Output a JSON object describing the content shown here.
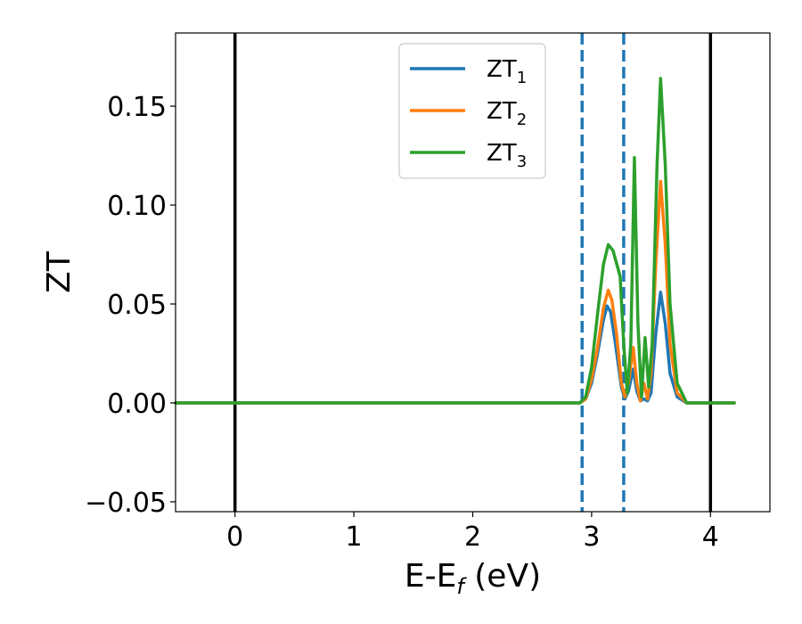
{
  "chart_data": {
    "type": "line",
    "xlabel": "E-E",
    "xlabel_sub": "f",
    "xlabel_unit": " (eV)",
    "ylabel": "ZT",
    "xlim": [
      -0.5,
      4.5
    ],
    "ylim": [
      -0.055,
      0.187
    ],
    "x_ticks": [
      {
        "value": 0,
        "label": "0"
      },
      {
        "value": 1,
        "label": "1"
      },
      {
        "value": 2,
        "label": "2"
      },
      {
        "value": 3,
        "label": "3"
      },
      {
        "value": 4,
        "label": "4"
      }
    ],
    "y_ticks": [
      {
        "value": -0.05,
        "label": "−0.05"
      },
      {
        "value": 0.0,
        "label": "0.00"
      },
      {
        "value": 0.05,
        "label": "0.05"
      },
      {
        "value": 0.1,
        "label": "0.10"
      },
      {
        "value": 0.15,
        "label": "0.15"
      }
    ],
    "grid": false,
    "legend_position": "top-center",
    "vertical_lines": [
      {
        "x": 0.0,
        "style": "solid",
        "color": "#000000"
      },
      {
        "x": 4.0,
        "style": "solid",
        "color": "#000000"
      },
      {
        "x": 2.92,
        "style": "dashed",
        "color": "#1f77b4"
      },
      {
        "x": 3.27,
        "style": "dashed",
        "color": "#1f77b4"
      }
    ],
    "series": [
      {
        "name": "ZT",
        "name_sub": "1",
        "color": "#1f77b4",
        "points": [
          [
            -0.5,
            0
          ],
          [
            2.9,
            0
          ],
          [
            2.95,
            0.002
          ],
          [
            3.0,
            0.01
          ],
          [
            3.05,
            0.025
          ],
          [
            3.1,
            0.042
          ],
          [
            3.13,
            0.049
          ],
          [
            3.16,
            0.046
          ],
          [
            3.2,
            0.03
          ],
          [
            3.25,
            0.008
          ],
          [
            3.28,
            0.002
          ],
          [
            3.31,
            0.006
          ],
          [
            3.35,
            0.017
          ],
          [
            3.38,
            0.006
          ],
          [
            3.41,
            0.001
          ],
          [
            3.44,
            0.002
          ],
          [
            3.47,
            0.001
          ],
          [
            3.5,
            0.005
          ],
          [
            3.54,
            0.035
          ],
          [
            3.58,
            0.056
          ],
          [
            3.62,
            0.04
          ],
          [
            3.66,
            0.015
          ],
          [
            3.72,
            0.003
          ],
          [
            3.8,
            0
          ],
          [
            4.2,
            0
          ]
        ]
      },
      {
        "name": "ZT",
        "name_sub": "2",
        "color": "#ff7f0e",
        "points": [
          [
            -0.5,
            0
          ],
          [
            2.9,
            0
          ],
          [
            2.95,
            0.002
          ],
          [
            3.0,
            0.012
          ],
          [
            3.05,
            0.028
          ],
          [
            3.1,
            0.048
          ],
          [
            3.14,
            0.057
          ],
          [
            3.17,
            0.052
          ],
          [
            3.21,
            0.035
          ],
          [
            3.25,
            0.01
          ],
          [
            3.28,
            0.003
          ],
          [
            3.31,
            0.01
          ],
          [
            3.35,
            0.028
          ],
          [
            3.38,
            0.01
          ],
          [
            3.41,
            0.001
          ],
          [
            3.44,
            0.01
          ],
          [
            3.47,
            0.002
          ],
          [
            3.5,
            0.015
          ],
          [
            3.54,
            0.07
          ],
          [
            3.58,
            0.112
          ],
          [
            3.62,
            0.08
          ],
          [
            3.66,
            0.03
          ],
          [
            3.72,
            0.005
          ],
          [
            3.8,
            0
          ],
          [
            4.2,
            0
          ]
        ]
      },
      {
        "name": "ZT",
        "name_sub": "3",
        "color": "#2ca02c",
        "points": [
          [
            -0.5,
            0
          ],
          [
            2.9,
            0
          ],
          [
            2.95,
            0.003
          ],
          [
            3.0,
            0.018
          ],
          [
            3.05,
            0.045
          ],
          [
            3.1,
            0.07
          ],
          [
            3.14,
            0.08
          ],
          [
            3.18,
            0.077
          ],
          [
            3.24,
            0.064
          ],
          [
            3.27,
            0.03
          ],
          [
            3.3,
            0.005
          ],
          [
            3.33,
            0.03
          ],
          [
            3.36,
            0.124
          ],
          [
            3.39,
            0.04
          ],
          [
            3.42,
            0.003
          ],
          [
            3.45,
            0.033
          ],
          [
            3.48,
            0.008
          ],
          [
            3.51,
            0.03
          ],
          [
            3.55,
            0.12
          ],
          [
            3.58,
            0.164
          ],
          [
            3.62,
            0.12
          ],
          [
            3.66,
            0.05
          ],
          [
            3.72,
            0.01
          ],
          [
            3.8,
            0
          ],
          [
            4.2,
            0
          ]
        ]
      }
    ]
  }
}
